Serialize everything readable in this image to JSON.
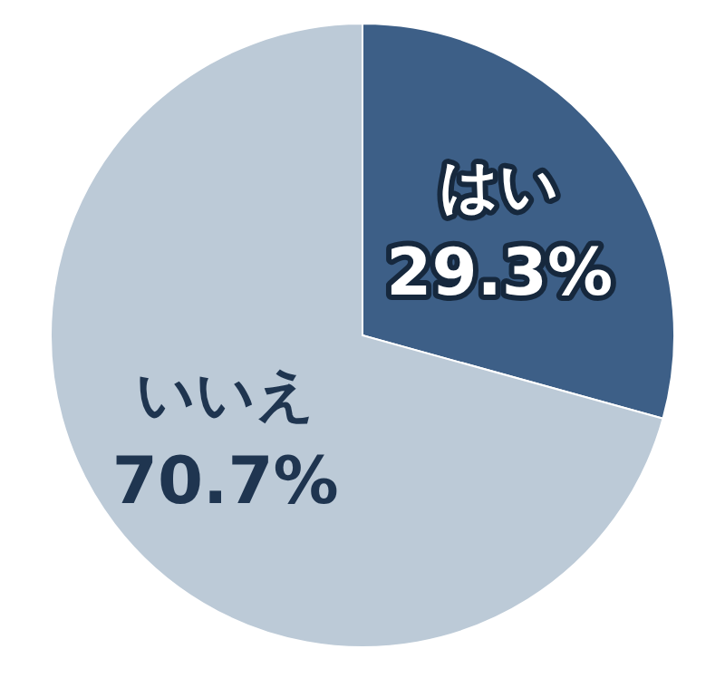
{
  "chart_data": {
    "type": "pie",
    "categories": [
      "はい",
      "いいえ"
    ],
    "values": [
      29.3,
      70.7
    ],
    "colors": [
      "#3d5f87",
      "#bccad7"
    ],
    "value_labels": [
      "29.3%",
      "70.7%"
    ]
  }
}
